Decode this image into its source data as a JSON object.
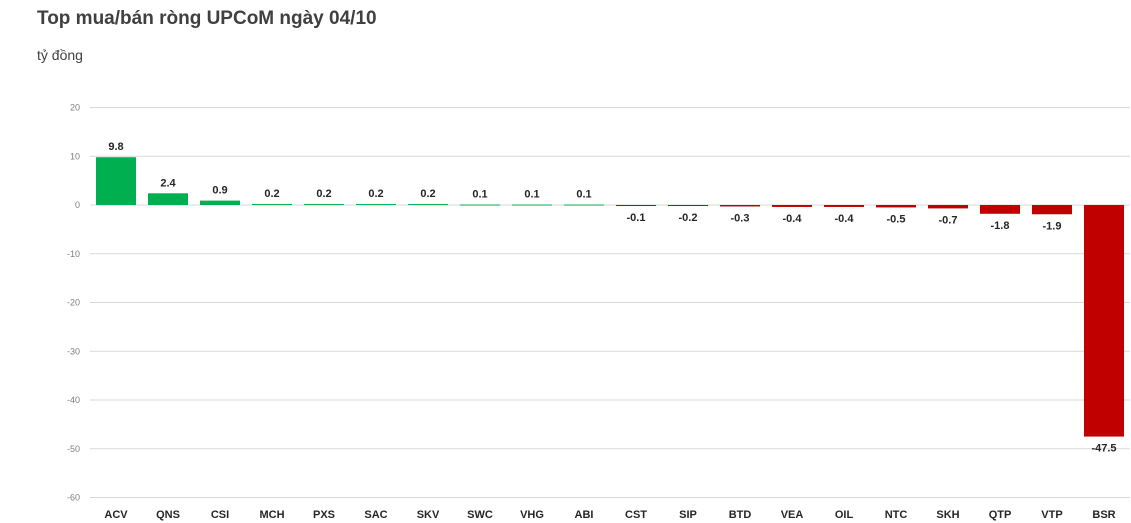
{
  "chart_data": {
    "type": "bar",
    "title": "Top mua/bán ròng UPCoM ngày 04/10",
    "unit": "tỷ đồng",
    "ylim": [
      -60,
      20
    ],
    "yticks": [
      20,
      10,
      0,
      -10,
      -20,
      -30,
      -40,
      -50,
      -60
    ],
    "categories": [
      "ACV",
      "QNS",
      "CSI",
      "MCH",
      "PXS",
      "SAC",
      "SKV",
      "SWC",
      "VHG",
      "ABI",
      "CST",
      "SIP",
      "BTD",
      "VEA",
      "OIL",
      "NTC",
      "SKH",
      "QTP",
      "VTP",
      "BSR"
    ],
    "values": [
      9.8,
      2.4,
      0.9,
      0.2,
      0.2,
      0.2,
      0.2,
      0.1,
      0.1,
      0.1,
      -0.1,
      -0.2,
      -0.3,
      -0.4,
      -0.4,
      -0.5,
      -0.7,
      -1.8,
      -1.9,
      -47.5
    ],
    "colors": {
      "positive": "#00b050",
      "negative": "#c00000"
    },
    "grid": true,
    "legend": "none"
  }
}
